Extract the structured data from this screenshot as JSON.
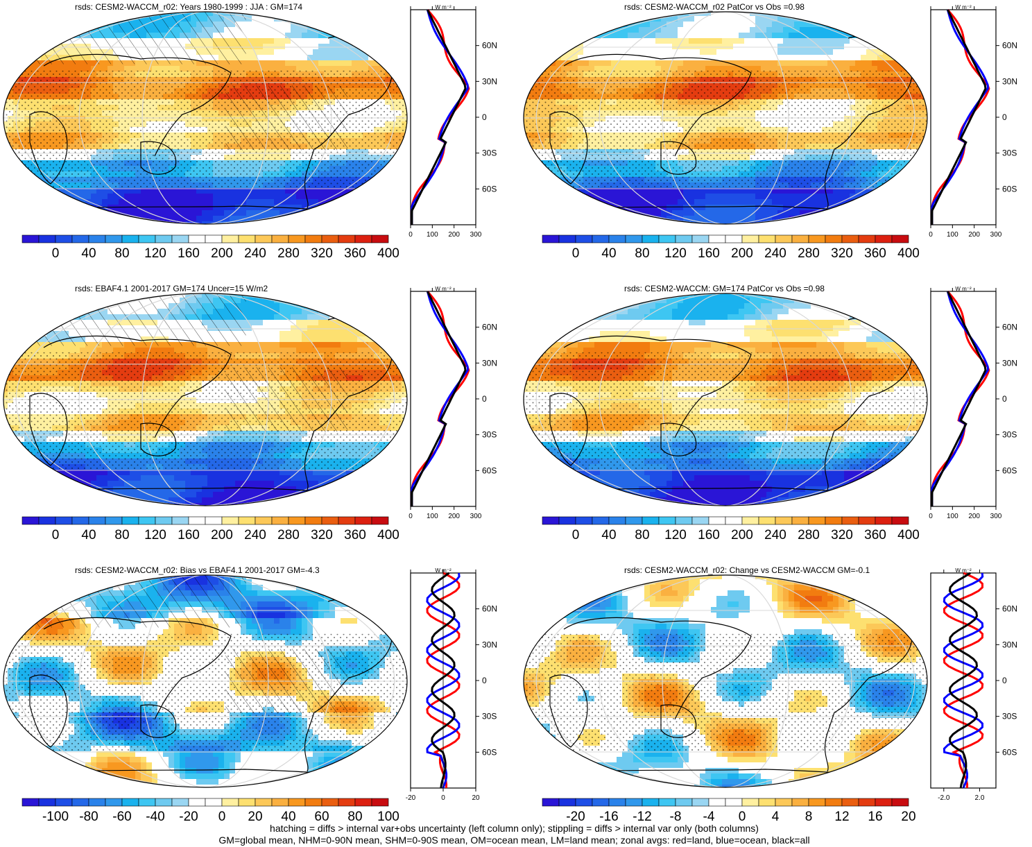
{
  "panels": [
    {
      "id": "p1",
      "title": "rsds: CESM2-WACCM_r02: Years 1980-1999 : JJA : GM=174",
      "kind": "mean",
      "hatch": true
    },
    {
      "id": "p2",
      "title": "rsds: CESM2-WACCM_r02 PatCor vs Obs =0.98",
      "kind": "mean",
      "hatch": false
    },
    {
      "id": "p3",
      "title": "rsds: EBAF4.1 2001-2017 GM=174 Uncer=15 W/m2",
      "kind": "mean",
      "hatch": true
    },
    {
      "id": "p4",
      "title": "rsds: CESM2-WACCM: GM=174 PatCor vs Obs =0.98",
      "kind": "mean",
      "hatch": false
    },
    {
      "id": "p5",
      "title": "rsds: CESM2-WACCM_r02: Bias vs EBAF4.1 2001-2017 GM=-4.3",
      "kind": "bias",
      "hatch": true
    },
    {
      "id": "p6",
      "title": "rsds: CESM2-WACCM_r02: Change vs CESM2-WACCM GM=-0.1",
      "kind": "change",
      "hatch": false
    }
  ],
  "colorbars": {
    "mean": {
      "labels": [
        "0",
        "40",
        "80",
        "120",
        "160",
        "200",
        "240",
        "280",
        "320",
        "360",
        "400"
      ]
    },
    "bias": {
      "labels": [
        "-100",
        "-80",
        "-60",
        "-40",
        "-20",
        "0",
        "20",
        "40",
        "60",
        "80",
        "100"
      ]
    },
    "change": {
      "labels": [
        "-20",
        "-16",
        "-12",
        "-8",
        "-4",
        "0",
        "4",
        "8",
        "12",
        "16",
        "20"
      ]
    }
  },
  "zonal_axes": {
    "lat_labels": [
      "60N",
      "30N",
      "0",
      "30S",
      "60S"
    ],
    "unit_label": "W m⁻²",
    "mean_x": [
      "0",
      "100",
      "200",
      "300"
    ],
    "bias_x": [
      "-20",
      "0",
      "20"
    ],
    "change_x": [
      "-2.0",
      "2.0"
    ]
  },
  "palette": {
    "mean": [
      "#2a15d6",
      "#1932e0",
      "#1e4ee6",
      "#2468e8",
      "#2a82ea",
      "#3098ec",
      "#1ab2ee",
      "#3ec6f2",
      "#6ecaf0",
      "#9ad6f2",
      "#ffffff",
      "#ffffff",
      "#fff0a0",
      "#fde070",
      "#fcc858",
      "#fab040",
      "#f89820",
      "#f27c10",
      "#ea5e10",
      "#e43c10",
      "#dc2010",
      "#c80c10"
    ],
    "lines": {
      "land": "#ff0000",
      "ocean": "#0000ff",
      "all": "#000000"
    }
  },
  "footer": {
    "line1": "hatching = diffs > internal var+obs uncertainty (left column only); stippling = diffs > internal var only (both columns)",
    "line2": "GM=global mean, NHM=0-90N mean, SHM=0-90S mean, OM=ocean mean, LM=land mean; zonal avgs: red=land, blue=ocean, black=all"
  }
}
